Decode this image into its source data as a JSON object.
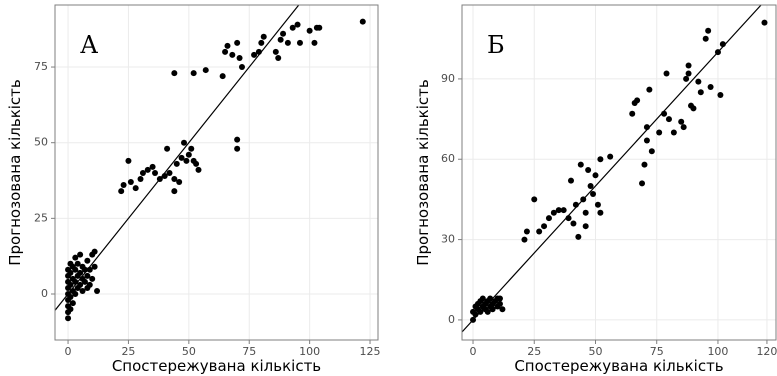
{
  "chart_data": [
    {
      "type": "scatter",
      "title": "А",
      "x_label": "Спостережувана кількість",
      "y_label": "Прогнозована кількість",
      "color": "#000000",
      "grid": true,
      "identity_line": true,
      "xlim": [
        -5.4,
        128.3
      ],
      "ylim": [
        -15.2,
        95.5
      ],
      "xticks": [
        0,
        25,
        50,
        75,
        100,
        125
      ],
      "yticks": [
        0,
        25,
        50,
        75
      ],
      "x": [
        0,
        0,
        0,
        0,
        0,
        0,
        0,
        0,
        0,
        1,
        1,
        1,
        1,
        1,
        2,
        2,
        2,
        2,
        3,
        3,
        3,
        3,
        4,
        4,
        4,
        5,
        5,
        5,
        6,
        6,
        6,
        7,
        7,
        8,
        8,
        8,
        9,
        9,
        10,
        10,
        11,
        12,
        11,
        22,
        23,
        25,
        26,
        28,
        30,
        31,
        33,
        35,
        36,
        38,
        40,
        42,
        44,
        45,
        44,
        47,
        48,
        49,
        50,
        51,
        52,
        53,
        54,
        46,
        41,
        44,
        52,
        57,
        65,
        66,
        70,
        71,
        72,
        70,
        70,
        77,
        79,
        80,
        81,
        86,
        87,
        88,
        89,
        91,
        93,
        95,
        96,
        100,
        102,
        103,
        104,
        122,
        68,
        64
      ],
      "y": [
        -8,
        -6,
        -4,
        -2,
        0,
        2,
        4,
        6,
        8,
        -5,
        -1,
        3,
        7,
        10,
        -3,
        1,
        5,
        9,
        0,
        4,
        8,
        12,
        2,
        6,
        10,
        3,
        7,
        13,
        1,
        5,
        9,
        4,
        8,
        2,
        6,
        11,
        3,
        8,
        5,
        13,
        14,
        1,
        9,
        34,
        36,
        44,
        37,
        35,
        38,
        40,
        41,
        42,
        40,
        38,
        39,
        40,
        34,
        43,
        38,
        45,
        50,
        44,
        46,
        48,
        44,
        43,
        41,
        37,
        48,
        73,
        73,
        74,
        80,
        82,
        83,
        78,
        75,
        48,
        51,
        79,
        80,
        83,
        85,
        80,
        78,
        84,
        86,
        83,
        88,
        89,
        83,
        87,
        83,
        88,
        88,
        90,
        79,
        72
      ]
    },
    {
      "type": "scatter",
      "title": "Б",
      "x_label": "Спостережувана кількість",
      "y_label": "Прогнозована кількість",
      "color": "#000000",
      "grid": true,
      "identity_line": true,
      "xlim": [
        -4.5,
        123.7
      ],
      "ylim": [
        -7.5,
        117.6
      ],
      "xticks": [
        0,
        25,
        50,
        75,
        100,
        120
      ],
      "yticks": [
        0,
        30,
        60,
        90
      ],
      "x": [
        0,
        0,
        1,
        1,
        2,
        2,
        3,
        3,
        4,
        4,
        5,
        5,
        6,
        6,
        7,
        7,
        8,
        8,
        9,
        10,
        10,
        11,
        12,
        11,
        21,
        22,
        25,
        27,
        29,
        31,
        33,
        35,
        37,
        39,
        40,
        41,
        42,
        43,
        44,
        45,
        46,
        47,
        48,
        49,
        50,
        51,
        52,
        52,
        56,
        46,
        65,
        66,
        67,
        69,
        70,
        71,
        72,
        71,
        73,
        76,
        78,
        79,
        80,
        82,
        85,
        86,
        87,
        88,
        88,
        89,
        90,
        92,
        93,
        95,
        96,
        97,
        100,
        101,
        102,
        119
      ],
      "y": [
        0,
        3,
        5,
        2,
        6,
        4,
        7,
        3,
        5,
        8,
        6,
        4,
        3,
        7,
        5,
        8,
        6,
        4,
        7,
        5,
        8,
        6,
        4,
        8,
        30,
        33,
        45,
        33,
        35,
        38,
        40,
        41,
        41,
        38,
        52,
        36,
        43,
        31,
        58,
        45,
        40,
        56,
        50,
        47,
        54,
        43,
        40,
        60,
        61,
        35,
        77,
        81,
        82,
        51,
        58,
        72,
        86,
        67,
        63,
        70,
        77,
        92,
        75,
        70,
        74,
        72,
        90,
        95,
        92,
        80,
        79,
        89,
        85,
        105,
        108,
        87,
        100,
        84,
        103,
        111
      ]
    }
  ]
}
